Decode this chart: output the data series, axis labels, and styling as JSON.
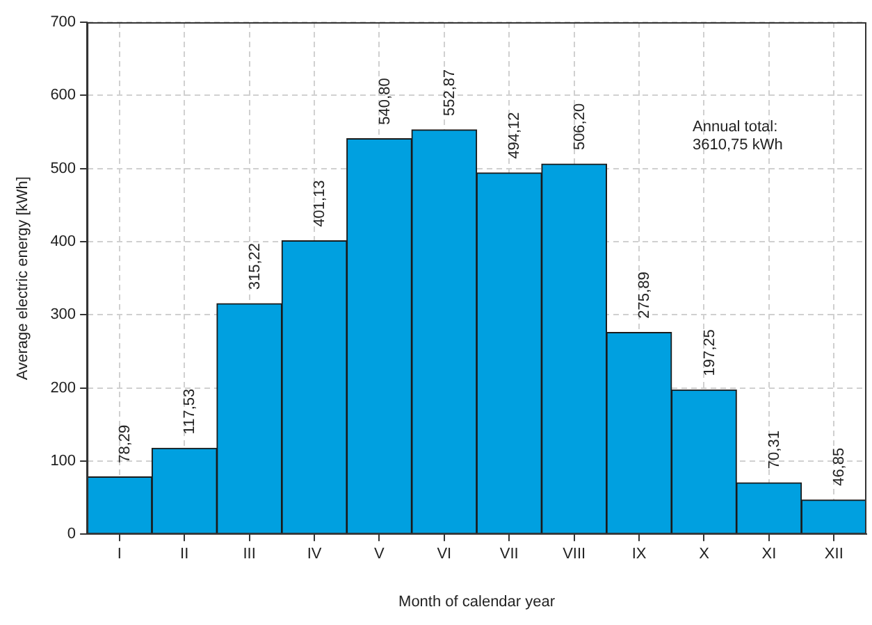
{
  "chart_data": {
    "type": "bar",
    "xlabel": "Month of calendar year",
    "ylabel": "Average electric energy [kWh]",
    "categories": [
      "I",
      "II",
      "III",
      "IV",
      "V",
      "VI",
      "VII",
      "VIII",
      "IX",
      "X",
      "XI",
      "XII"
    ],
    "values": [
      78.29,
      117.53,
      315.22,
      401.13,
      540.8,
      552.87,
      494.12,
      506.2,
      275.89,
      197.25,
      70.31,
      46.85
    ],
    "value_labels": [
      "78,29",
      "117,53",
      "315,22",
      "401,13",
      "540,80",
      "552,87",
      "494,12",
      "506,20",
      "275,89",
      "197,25",
      "70,31",
      "46,85"
    ],
    "color": "#00a0e0",
    "ylim": [
      0,
      700
    ],
    "yticks": [
      0,
      100,
      200,
      300,
      400,
      500,
      600,
      700
    ],
    "grid": true,
    "legend": false,
    "annotations": [
      "Annual total:\n3610,75 kWh"
    ]
  }
}
